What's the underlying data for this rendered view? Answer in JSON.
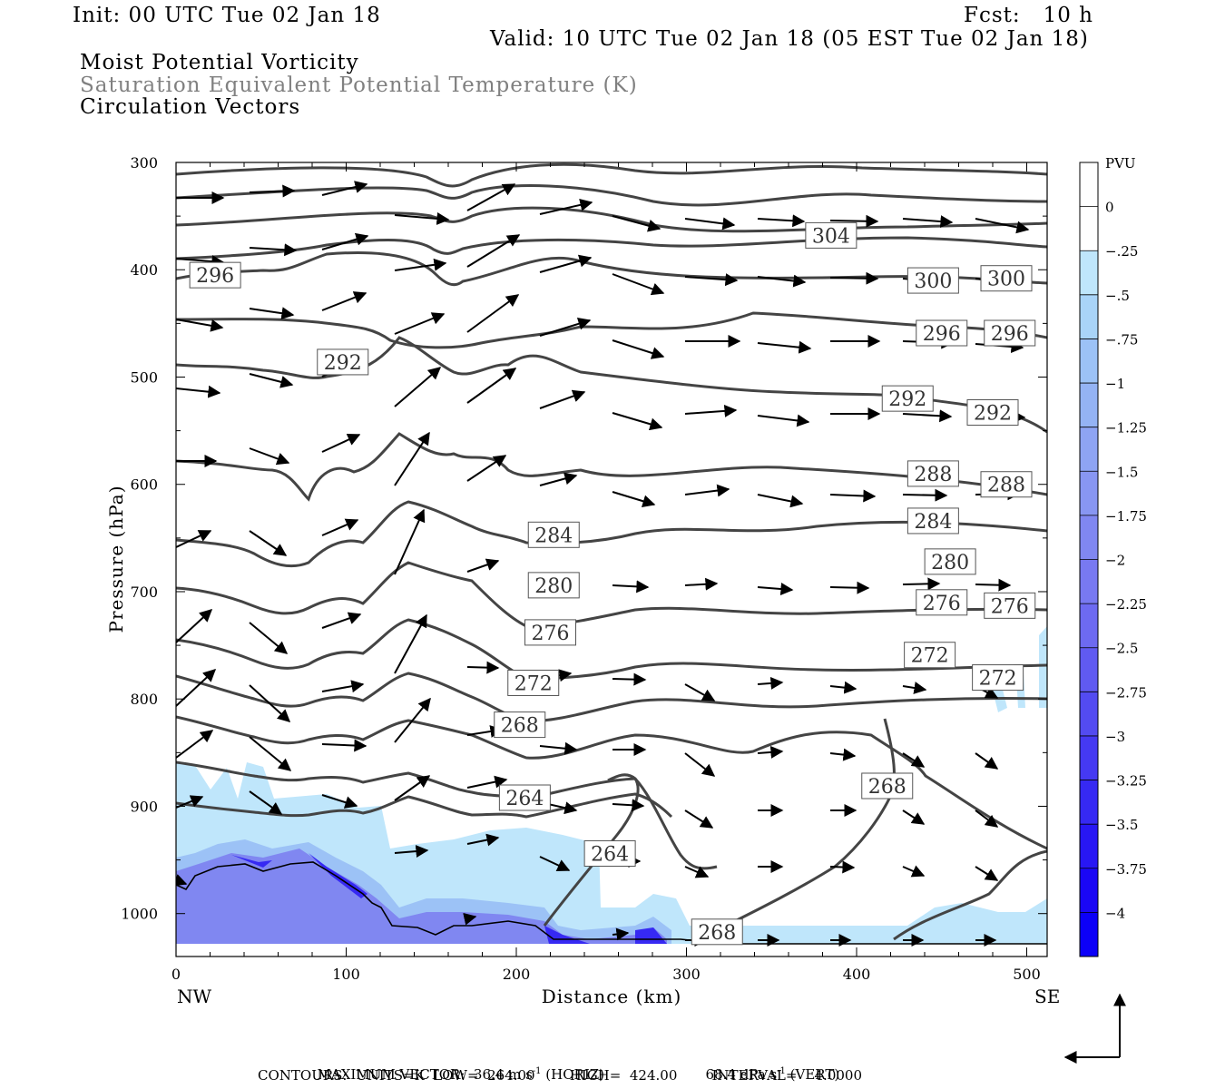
{
  "header": {
    "init": "Init: 00 UTC Tue 02 Jan 18",
    "fcst": "Fcst:   10 h",
    "valid": "Valid: 10 UTC Tue 02 Jan 18 (05 EST Tue 02 Jan 18)",
    "field1": "Moist Potential Vorticity",
    "field2": "Saturation Equivalent Potential Temperature (K)",
    "field3": "Circulation Vectors"
  },
  "colorbar": {
    "title": "PVU",
    "levels": [
      "0",
      "-.25",
      "-.5",
      "-.75",
      "-1",
      "-1.25",
      "-1.5",
      "-1.75",
      "-2",
      "-2.25",
      "-2.5",
      "-2.75",
      "-3",
      "-3.25",
      "-3.5",
      "-3.75",
      "-4"
    ],
    "colors": [
      "#ffffff",
      "#ffffff",
      "#bfe6fb",
      "#a9d4f8",
      "#9cc2f6",
      "#94b3f4",
      "#8ea4f3",
      "#8896f2",
      "#8087f1",
      "#7879f1",
      "#6d6af1",
      "#605af1",
      "#534bf1",
      "#4539f2",
      "#3629f3",
      "#2817f4",
      "#1a07f5",
      "#0c00f8"
    ]
  },
  "footer": {
    "max_vector": "MAXIMUM VECTOR:  36.4 m s",
    "max_vector_exp1": "-1",
    "max_vector_horiz": " (HORIZ)",
    "max_vector_vert": "68.4 dPa s",
    "max_vector_exp2": "-1",
    "max_vector_vert_tail": " (VERT)",
    "contours": "CONTOURS:  UNITS=K  LOW=  264.00        HIGH=  424.00        INTERVAL=    4.0000"
  },
  "chart_data": {
    "type": "contour",
    "title": "Moist Potential Vorticity / Saturation Equivalent Potential Temperature (K) / Circulation Vectors",
    "xlabel": "Distance (km)",
    "ylabel": "Pressure (hPa)",
    "xlim": [
      0,
      512
    ],
    "ylim": [
      300,
      1040
    ],
    "x_ticks": [
      0,
      100,
      200,
      300,
      400,
      500
    ],
    "y_ticks": [
      300,
      400,
      500,
      600,
      700,
      800,
      900,
      1000
    ],
    "x_end_labels": {
      "left": "NW",
      "right": "SE"
    },
    "contour_units": "K",
    "contour_low": 264.0,
    "contour_high": 424.0,
    "contour_interval": 4.0,
    "contour_labels": [
      {
        "value": 304,
        "x": 385,
        "p": 368
      },
      {
        "value": 300,
        "x": 445,
        "p": 410
      },
      {
        "value": 300,
        "x": 488,
        "p": 408
      },
      {
        "value": 296,
        "x": 23,
        "p": 405
      },
      {
        "value": 296,
        "x": 450,
        "p": 459
      },
      {
        "value": 296,
        "x": 490,
        "p": 459
      },
      {
        "value": 292,
        "x": 98,
        "p": 486
      },
      {
        "value": 292,
        "x": 430,
        "p": 520
      },
      {
        "value": 292,
        "x": 480,
        "p": 533
      },
      {
        "value": 288,
        "x": 445,
        "p": 590
      },
      {
        "value": 288,
        "x": 488,
        "p": 600
      },
      {
        "value": 284,
        "x": 222,
        "p": 647
      },
      {
        "value": 284,
        "x": 445,
        "p": 634
      },
      {
        "value": 280,
        "x": 222,
        "p": 694
      },
      {
        "value": 280,
        "x": 455,
        "p": 672
      },
      {
        "value": 276,
        "x": 220,
        "p": 738
      },
      {
        "value": 276,
        "x": 450,
        "p": 710
      },
      {
        "value": 276,
        "x": 490,
        "p": 713
      },
      {
        "value": 272,
        "x": 210,
        "p": 785
      },
      {
        "value": 272,
        "x": 443,
        "p": 759
      },
      {
        "value": 272,
        "x": 483,
        "p": 780
      },
      {
        "value": 268,
        "x": 202,
        "p": 824
      },
      {
        "value": 268,
        "x": 418,
        "p": 881
      },
      {
        "value": 268,
        "x": 318,
        "p": 1017
      },
      {
        "value": 264,
        "x": 205,
        "p": 892
      },
      {
        "value": 264,
        "x": 255,
        "p": 944
      }
    ],
    "pv_shading_levels": [
      0,
      -0.25,
      -0.5,
      -0.75,
      -1,
      -1.25,
      -1.5,
      -1.75,
      -2,
      -2.25,
      -2.5,
      -2.75,
      -3,
      -3.25,
      -3.5,
      -3.75,
      -4
    ],
    "max_vector_horiz_ms": 36.4,
    "max_vector_vert_dPas": 68.4
  }
}
